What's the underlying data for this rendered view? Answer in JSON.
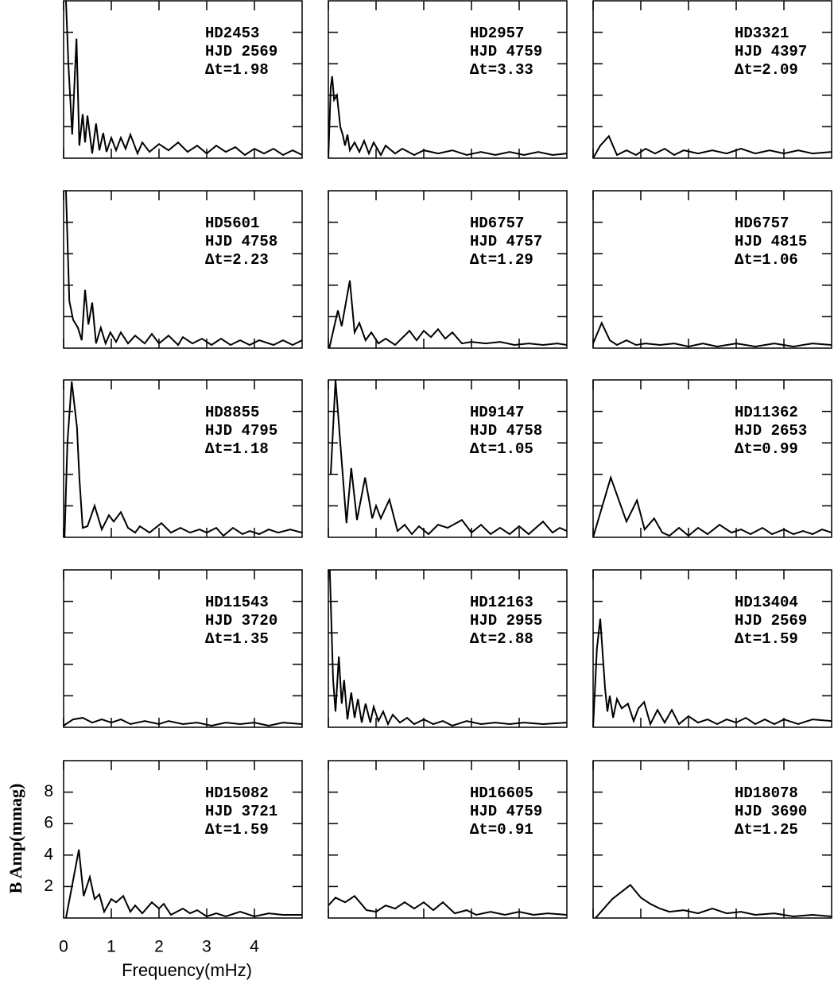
{
  "axes": {
    "xlabel": "Frequency(mHz)",
    "ylabel": "B Amp(mmag)",
    "xlim": [
      0,
      5
    ],
    "ylim": [
      0,
      10
    ],
    "xticks": [
      0,
      1,
      2,
      3,
      4
    ],
    "yticks": [
      2,
      4,
      6,
      8
    ]
  },
  "chart_data": [
    {
      "type": "line",
      "name": "HD2453",
      "hjd": "HJD 2569",
      "dt": "Δt=1.98",
      "x": [
        0.05,
        0.1,
        0.18,
        0.27,
        0.33,
        0.4,
        0.45,
        0.5,
        0.6,
        0.68,
        0.75,
        0.83,
        0.9,
        1.0,
        1.1,
        1.2,
        1.3,
        1.4,
        1.55,
        1.65,
        1.8,
        2.0,
        2.2,
        2.4,
        2.6,
        2.8,
        3.0,
        3.2,
        3.4,
        3.6,
        3.8,
        4.0,
        4.2,
        4.4,
        4.6,
        4.8,
        5.0
      ],
      "values": [
        10,
        6,
        1.5,
        7.6,
        0.8,
        2.8,
        1.0,
        2.7,
        0.3,
        2.2,
        0.5,
        1.6,
        0.4,
        1.3,
        0.5,
        1.3,
        0.6,
        1.5,
        0.3,
        1.0,
        0.4,
        0.9,
        0.5,
        1.0,
        0.4,
        0.8,
        0.3,
        0.8,
        0.4,
        0.7,
        0.2,
        0.6,
        0.3,
        0.6,
        0.2,
        0.5,
        0.2
      ]
    },
    {
      "type": "line",
      "name": "HD2957",
      "hjd": "HJD 4759",
      "dt": "Δt=3.33",
      "x": [
        0,
        0.05,
        0.08,
        0.12,
        0.18,
        0.25,
        0.3,
        0.35,
        0.4,
        0.45,
        0.55,
        0.65,
        0.75,
        0.85,
        0.95,
        1.1,
        1.2,
        1.4,
        1.55,
        1.8,
        2.0,
        2.3,
        2.6,
        2.9,
        3.2,
        3.5,
        3.8,
        4.1,
        4.4,
        4.7,
        5.0
      ],
      "values": [
        0,
        4.5,
        5.2,
        3.7,
        4.0,
        2.0,
        1.5,
        0.8,
        1.5,
        0.5,
        1.0,
        0.4,
        1.1,
        0.3,
        1.0,
        0.2,
        0.8,
        0.3,
        0.6,
        0.2,
        0.5,
        0.3,
        0.5,
        0.2,
        0.4,
        0.2,
        0.4,
        0.2,
        0.4,
        0.2,
        0.3
      ]
    },
    {
      "type": "line",
      "name": "HD3321",
      "hjd": "HJD 4397",
      "dt": "Δt=2.09",
      "x": [
        0,
        0.15,
        0.33,
        0.5,
        0.7,
        0.9,
        1.1,
        1.3,
        1.5,
        1.7,
        1.9,
        2.2,
        2.5,
        2.8,
        3.1,
        3.4,
        3.7,
        4.0,
        4.3,
        4.6,
        5.0
      ],
      "values": [
        0,
        0.8,
        1.4,
        0.2,
        0.5,
        0.2,
        0.6,
        0.3,
        0.6,
        0.2,
        0.5,
        0.3,
        0.5,
        0.3,
        0.6,
        0.3,
        0.5,
        0.3,
        0.5,
        0.3,
        0.4
      ]
    },
    {
      "type": "line",
      "name": "HD5601",
      "hjd": "HJD 4758",
      "dt": "Δt=2.23",
      "x": [
        0.05,
        0.12,
        0.2,
        0.3,
        0.38,
        0.45,
        0.52,
        0.6,
        0.68,
        0.78,
        0.88,
        0.98,
        1.1,
        1.2,
        1.35,
        1.5,
        1.7,
        1.85,
        2.0,
        2.2,
        2.4,
        2.5,
        2.7,
        2.9,
        3.1,
        3.3,
        3.5,
        3.7,
        3.9,
        4.1,
        4.4,
        4.6,
        4.8,
        5.0
      ],
      "values": [
        10,
        3,
        1.8,
        1.3,
        0.5,
        3.7,
        1.5,
        2.9,
        0.3,
        1.3,
        0.3,
        1.0,
        0.4,
        1.0,
        0.3,
        0.8,
        0.3,
        0.9,
        0.3,
        0.8,
        0.2,
        0.7,
        0.3,
        0.6,
        0.2,
        0.6,
        0.2,
        0.5,
        0.2,
        0.5,
        0.2,
        0.5,
        0.2,
        0.5
      ]
    },
    {
      "type": "line",
      "name": "HD6757",
      "hjd": "HJD 4757",
      "dt": "Δt=1.29",
      "x": [
        0.02,
        0.2,
        0.28,
        0.45,
        0.55,
        0.65,
        0.78,
        0.9,
        1.05,
        1.2,
        1.4,
        1.7,
        1.85,
        2.0,
        2.15,
        2.3,
        2.45,
        2.6,
        2.8,
        3.0,
        3.3,
        3.6,
        3.9,
        4.2,
        4.5,
        4.8,
        5.0
      ],
      "values": [
        0,
        2.4,
        1.4,
        4.3,
        1.0,
        1.6,
        0.5,
        1.0,
        0.3,
        0.6,
        0.2,
        1.1,
        0.5,
        1.1,
        0.7,
        1.2,
        0.6,
        1.0,
        0.3,
        0.4,
        0.3,
        0.4,
        0.2,
        0.3,
        0.2,
        0.3,
        0.2
      ]
    },
    {
      "type": "line",
      "name": "HD6757",
      "hjd": "HJD 4815",
      "dt": "Δt=1.06",
      "x": [
        0,
        0.18,
        0.35,
        0.5,
        0.7,
        0.9,
        1.1,
        1.4,
        1.7,
        2.0,
        2.3,
        2.6,
        3.0,
        3.4,
        3.8,
        4.2,
        4.6,
        5.0
      ],
      "values": [
        0.3,
        1.6,
        0.5,
        0.2,
        0.5,
        0.2,
        0.3,
        0.2,
        0.3,
        0.1,
        0.3,
        0.1,
        0.3,
        0.1,
        0.3,
        0.1,
        0.3,
        0.2
      ]
    },
    {
      "type": "line",
      "name": "HD8855",
      "hjd": "HJD 4795",
      "dt": "Δt=1.18",
      "x": [
        0.02,
        0.08,
        0.17,
        0.28,
        0.33,
        0.4,
        0.5,
        0.65,
        0.8,
        0.95,
        1.05,
        1.2,
        1.35,
        1.5,
        1.6,
        1.8,
        2.05,
        2.25,
        2.45,
        2.65,
        2.85,
        3.0,
        3.2,
        3.35,
        3.55,
        3.75,
        3.9,
        4.1,
        4.3,
        4.5,
        4.75,
        5.0
      ],
      "values": [
        0,
        6,
        9.9,
        7,
        3.8,
        0.6,
        0.7,
        2.0,
        0.5,
        1.4,
        1.0,
        1.6,
        0.6,
        0.3,
        0.7,
        0.3,
        0.9,
        0.3,
        0.6,
        0.3,
        0.5,
        0.3,
        0.6,
        0.1,
        0.6,
        0.2,
        0.4,
        0.2,
        0.5,
        0.3,
        0.5,
        0.3
      ]
    },
    {
      "type": "line",
      "name": "HD9147",
      "hjd": "HJD 4758",
      "dt": "Δt=1.05",
      "x": [
        0.05,
        0.15,
        0.25,
        0.38,
        0.48,
        0.6,
        0.77,
        0.92,
        1.0,
        1.1,
        1.28,
        1.45,
        1.6,
        1.75,
        1.9,
        2.1,
        2.3,
        2.5,
        2.8,
        3.0,
        3.2,
        3.4,
        3.6,
        3.8,
        4.0,
        4.2,
        4.5,
        4.7,
        4.85,
        5.0
      ],
      "values": [
        4,
        10,
        6,
        0.9,
        4.4,
        1.1,
        3.8,
        1.2,
        2.0,
        1.2,
        2.4,
        0.4,
        0.8,
        0.2,
        0.7,
        0.2,
        0.8,
        0.6,
        1.1,
        0.3,
        0.8,
        0.2,
        0.6,
        0.2,
        0.7,
        0.2,
        1.0,
        0.3,
        0.6,
        0.4
      ]
    },
    {
      "type": "line",
      "name": "HD11362",
      "hjd": "HJD 2653",
      "dt": "Δt=0.99",
      "x": [
        0,
        0.37,
        0.7,
        0.92,
        1.08,
        1.28,
        1.45,
        1.6,
        1.8,
        2.0,
        2.2,
        2.4,
        2.65,
        2.9,
        3.1,
        3.3,
        3.55,
        3.75,
        4.0,
        4.2,
        4.4,
        4.6,
        4.8,
        5.0
      ],
      "values": [
        0,
        3.8,
        1.0,
        2.35,
        0.5,
        1.2,
        0.3,
        0.1,
        0.6,
        0.1,
        0.6,
        0.2,
        0.8,
        0.3,
        0.5,
        0.2,
        0.6,
        0.2,
        0.5,
        0.2,
        0.4,
        0.2,
        0.5,
        0.3
      ]
    },
    {
      "type": "line",
      "name": "HD11543",
      "hjd": "HJD 3720",
      "dt": "Δt=1.35",
      "x": [
        0,
        0.2,
        0.4,
        0.6,
        0.8,
        1.0,
        1.2,
        1.4,
        1.7,
        2.0,
        2.2,
        2.5,
        2.8,
        3.1,
        3.4,
        3.7,
        4.0,
        4.3,
        4.6,
        5.0
      ],
      "values": [
        0.1,
        0.5,
        0.6,
        0.3,
        0.5,
        0.3,
        0.5,
        0.2,
        0.4,
        0.2,
        0.4,
        0.2,
        0.3,
        0.1,
        0.3,
        0.2,
        0.3,
        0.1,
        0.3,
        0.2
      ]
    },
    {
      "type": "line",
      "name": "HD12163",
      "hjd": "HJD 2955",
      "dt": "Δt=2.88",
      "x": [
        0.03,
        0.1,
        0.15,
        0.22,
        0.28,
        0.33,
        0.4,
        0.48,
        0.55,
        0.62,
        0.7,
        0.78,
        0.88,
        0.95,
        1.05,
        1.15,
        1.25,
        1.35,
        1.5,
        1.65,
        1.8,
        2.0,
        2.2,
        2.4,
        2.6,
        2.9,
        3.2,
        3.5,
        3.8,
        4.1,
        4.5,
        5.0
      ],
      "values": [
        10,
        3,
        1,
        4.5,
        1.5,
        3.0,
        0.5,
        2.2,
        0.6,
        1.8,
        0.3,
        1.5,
        0.3,
        1.3,
        0.4,
        1.0,
        0.2,
        0.8,
        0.3,
        0.6,
        0.2,
        0.5,
        0.2,
        0.4,
        0.1,
        0.4,
        0.2,
        0.3,
        0.2,
        0.3,
        0.2,
        0.3
      ]
    },
    {
      "type": "line",
      "name": "HD13404",
      "hjd": "HJD 2569",
      "dt": "Δt=1.59",
      "x": [
        0,
        0.08,
        0.15,
        0.25,
        0.3,
        0.35,
        0.42,
        0.5,
        0.6,
        0.73,
        0.85,
        0.95,
        1.07,
        1.2,
        1.35,
        1.5,
        1.65,
        1.8,
        2.0,
        2.2,
        2.4,
        2.6,
        2.8,
        3.0,
        3.2,
        3.4,
        3.6,
        3.8,
        4.0,
        4.3,
        4.6,
        5.0
      ],
      "values": [
        0,
        5,
        6.9,
        2.5,
        1.0,
        2.0,
        0.6,
        1.8,
        1.2,
        1.5,
        0.4,
        1.2,
        1.6,
        0.2,
        1.1,
        0.3,
        1.1,
        0.2,
        0.7,
        0.3,
        0.5,
        0.2,
        0.5,
        0.3,
        0.6,
        0.2,
        0.5,
        0.2,
        0.5,
        0.2,
        0.5,
        0.4
      ]
    },
    {
      "type": "line",
      "name": "HD15082",
      "hjd": "HJD 3721",
      "dt": "Δt=1.59",
      "x": [
        0.05,
        0.32,
        0.42,
        0.55,
        0.65,
        0.75,
        0.85,
        1.0,
        1.1,
        1.25,
        1.4,
        1.5,
        1.65,
        1.85,
        2.0,
        2.1,
        2.25,
        2.5,
        2.65,
        2.8,
        3.0,
        3.2,
        3.4,
        3.7,
        4.0,
        4.3,
        4.6,
        5.0
      ],
      "values": [
        0,
        4.35,
        1.4,
        2.6,
        1.2,
        1.5,
        0.4,
        1.2,
        1.0,
        1.4,
        0.4,
        0.8,
        0.3,
        1.0,
        0.6,
        0.9,
        0.2,
        0.6,
        0.3,
        0.5,
        0.1,
        0.3,
        0.1,
        0.4,
        0.1,
        0.3,
        0.2,
        0.2
      ]
    },
    {
      "type": "line",
      "name": "HD16605",
      "hjd": "HJD 4759",
      "dt": "Δt=0.91",
      "x": [
        0,
        0.15,
        0.35,
        0.55,
        0.8,
        1.0,
        1.2,
        1.4,
        1.6,
        1.8,
        2.0,
        2.2,
        2.4,
        2.65,
        2.9,
        3.1,
        3.4,
        3.7,
        4.0,
        4.3,
        4.6,
        5.0
      ],
      "values": [
        0.8,
        1.3,
        1.0,
        1.4,
        0.5,
        0.4,
        0.8,
        0.6,
        1.0,
        0.6,
        1.0,
        0.5,
        1.0,
        0.3,
        0.5,
        0.2,
        0.4,
        0.2,
        0.4,
        0.2,
        0.3,
        0.2
      ]
    },
    {
      "type": "line",
      "name": "HD18078",
      "hjd": "HJD 3690",
      "dt": "Δt=1.25",
      "x": [
        0.05,
        0.4,
        0.78,
        1.0,
        1.2,
        1.4,
        1.6,
        1.9,
        2.2,
        2.5,
        2.8,
        3.1,
        3.4,
        3.8,
        4.2,
        4.6,
        5.0
      ],
      "values": [
        0,
        1.2,
        2.1,
        1.3,
        0.9,
        0.6,
        0.4,
        0.5,
        0.3,
        0.6,
        0.3,
        0.4,
        0.2,
        0.3,
        0.1,
        0.2,
        0.1
      ]
    }
  ]
}
